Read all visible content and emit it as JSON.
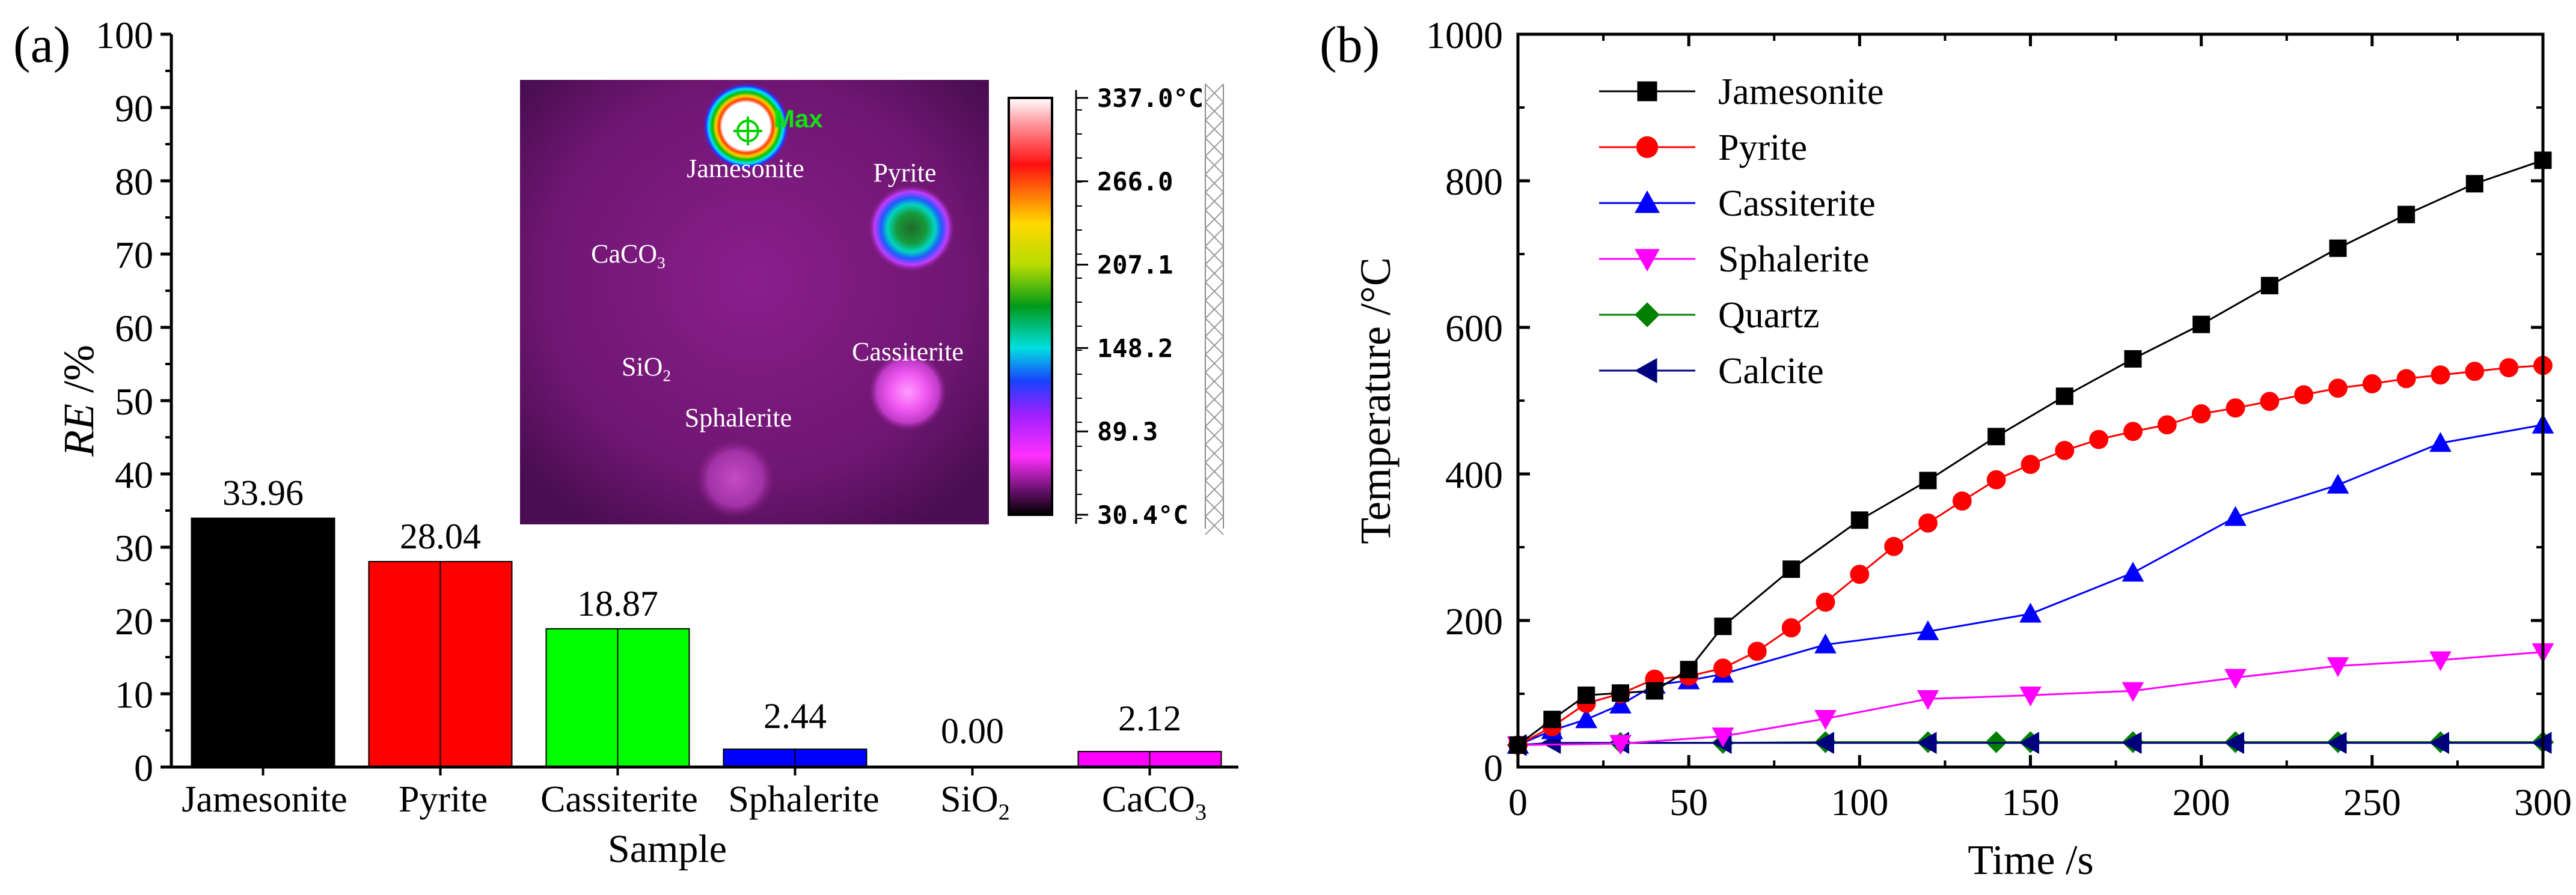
{
  "chart_data": [
    {
      "type": "bar",
      "panel_label": "(a)",
      "title": "",
      "xlabel": "Sample",
      "ylabel_italic": "RE",
      "ylabel_unit": " /%",
      "ylim": [
        0,
        100
      ],
      "yticks": [
        0,
        10,
        20,
        30,
        40,
        50,
        60,
        70,
        80,
        90,
        100
      ],
      "categories": [
        "Jamesonite",
        "Pyrite",
        "Cassiterite",
        "Sphalerite",
        "SiO₂",
        "CaCO₃"
      ],
      "values": [
        33.96,
        28.04,
        18.87,
        2.44,
        0.0,
        2.12
      ],
      "data_labels": [
        "33.96",
        "28.04",
        "18.87",
        "2.44",
        "0.00",
        "2.12"
      ],
      "colors": [
        "#000000",
        "#ff0000",
        "#00ff00",
        "#0000ff",
        "#00ffff",
        "#ff00ff"
      ],
      "inset": {
        "type": "thermal-image",
        "labels": [
          "Jamesonite",
          "Pyrite",
          "CaCO₃",
          "SiO₂",
          "Cassiterite",
          "Sphalerite"
        ],
        "max_marker": "Max",
        "colorbar_ticks": [
          "337.0°C",
          "266.0",
          "207.1",
          "148.2",
          "89.3",
          "30.4°C"
        ]
      }
    },
    {
      "type": "line",
      "panel_label": "(b)",
      "title": "",
      "xlabel": "Time /s",
      "ylabel": "Temperature /°C",
      "xlim": [
        0,
        300
      ],
      "ylim": [
        0,
        1000
      ],
      "xticks": [
        0,
        50,
        100,
        150,
        200,
        250,
        300
      ],
      "yticks": [
        0,
        200,
        400,
        600,
        800,
        1000
      ],
      "legend_position": "top-left",
      "series": [
        {
          "name": "Jamesonite",
          "color": "#000000",
          "marker": "square",
          "x": [
            0,
            10,
            20,
            30,
            40,
            50,
            60,
            80,
            100,
            120,
            140,
            160,
            180,
            200,
            220,
            240,
            260,
            280,
            300
          ],
          "y": [
            30,
            65,
            98,
            101,
            104,
            133,
            192,
            270,
            337,
            391,
            451,
            506,
            557,
            604,
            657,
            708,
            754,
            796,
            828
          ]
        },
        {
          "name": "Pyrite",
          "color": "#ff0000",
          "marker": "circle",
          "x": [
            0,
            10,
            20,
            30,
            40,
            50,
            60,
            70,
            80,
            90,
            100,
            110,
            120,
            130,
            140,
            150,
            160,
            170,
            180,
            190,
            200,
            210,
            220,
            230,
            240,
            250,
            260,
            270,
            280,
            290,
            300
          ],
          "y": [
            30,
            55,
            87,
            100,
            120,
            124,
            135,
            158,
            190,
            225,
            263,
            301,
            333,
            363,
            392,
            413,
            432,
            447,
            458,
            467,
            482,
            490,
            499,
            508,
            517,
            523,
            530,
            535,
            540,
            545,
            548
          ]
        },
        {
          "name": "Cassiterite",
          "color": "#0000ff",
          "marker": "triangle-up",
          "x": [
            0,
            10,
            20,
            30,
            40,
            50,
            60,
            90,
            120,
            150,
            180,
            210,
            240,
            270,
            300
          ],
          "y": [
            30,
            50,
            65,
            85,
            112,
            118,
            127,
            167,
            185,
            209,
            265,
            341,
            385,
            442,
            467
          ]
        },
        {
          "name": "Sphalerite",
          "color": "#ff00ff",
          "marker": "triangle-down",
          "x": [
            0,
            30,
            60,
            90,
            120,
            150,
            180,
            210,
            240,
            270,
            300
          ],
          "y": [
            30,
            32,
            42,
            66,
            93,
            98,
            104,
            122,
            138,
            146,
            157
          ]
        },
        {
          "name": "Quartz",
          "color": "#008000",
          "marker": "diamond",
          "x": [
            0,
            30,
            60,
            90,
            120,
            140,
            150,
            180,
            210,
            240,
            270,
            300
          ],
          "y": [
            30,
            33,
            33,
            34,
            34,
            34,
            34,
            34,
            34,
            34,
            34,
            34
          ]
        },
        {
          "name": "Calcite",
          "color": "#00007f",
          "marker": "triangle-left",
          "x": [
            0,
            10,
            30,
            60,
            90,
            120,
            150,
            180,
            210,
            240,
            270,
            300
          ],
          "y": [
            30,
            33,
            33,
            33,
            33,
            33,
            33,
            33,
            33,
            33,
            33,
            33
          ]
        }
      ]
    }
  ]
}
